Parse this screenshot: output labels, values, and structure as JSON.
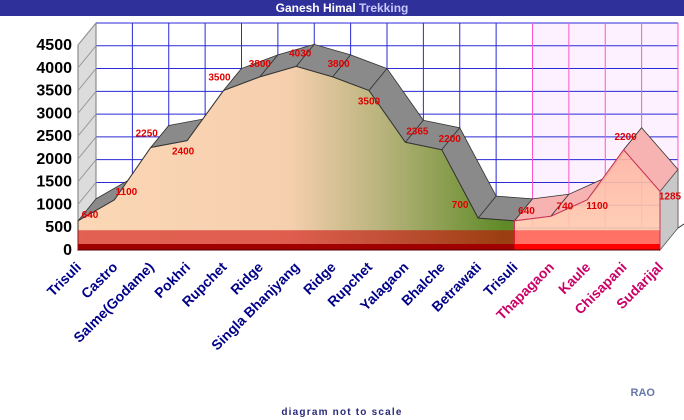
{
  "title": {
    "part1": "Ganesh Himal ",
    "part2": "Trekking",
    "part1_color": "#ffffff",
    "part2_color": "#c8c8ff"
  },
  "footer": "diagram not to scale",
  "signature": "RAO",
  "colors": {
    "title_bar": "#30309a",
    "grid": "#2a2ad8",
    "ytick": "#000000",
    "category_main": "#000088",
    "category_second": "#cc0066",
    "value_label": "#dd0000",
    "base_band": "#cc0000",
    "second_band": "#ff55cc",
    "fill_peach": "#fcd7b6",
    "fill_olive": "#5f8a27",
    "roof": "#8a8a8a",
    "roof_edge": "#333333"
  },
  "chart_data": {
    "type": "area",
    "title": "Ganesh Himal Trekking",
    "ylim": [
      0,
      4500
    ],
    "yticks": [
      0,
      500,
      1000,
      1500,
      2000,
      2500,
      3000,
      3500,
      4000,
      4500
    ],
    "grid": true,
    "categories": [
      "Trisuli",
      "Castro",
      "Salme(Godame)",
      "Pokhri",
      "Rupchet",
      "Ridge",
      "Singla Bhanjyang",
      "Ridge",
      "Rupchet",
      "Yalagaon",
      "Bhalche",
      "Betrawati",
      "Trisuli",
      "Thapagaon",
      "Kaule",
      "Chisapani",
      "Sudarijal"
    ],
    "series": [
      {
        "values": [
          640,
          1100,
          2250,
          2400,
          3500,
          3800,
          4030,
          3800,
          3500,
          2365,
          2200,
          700,
          640,
          740,
          1100,
          2200,
          1285
        ]
      }
    ],
    "value_labels": [
      "640",
      "1100",
      "2250",
      "2400",
      "3500",
      "3800",
      "4030",
      "3800",
      "3500",
      "2365",
      "2200",
      "700",
      "640",
      "740",
      "1100",
      "2200",
      "1285"
    ],
    "second_trek_start_index": 12
  }
}
